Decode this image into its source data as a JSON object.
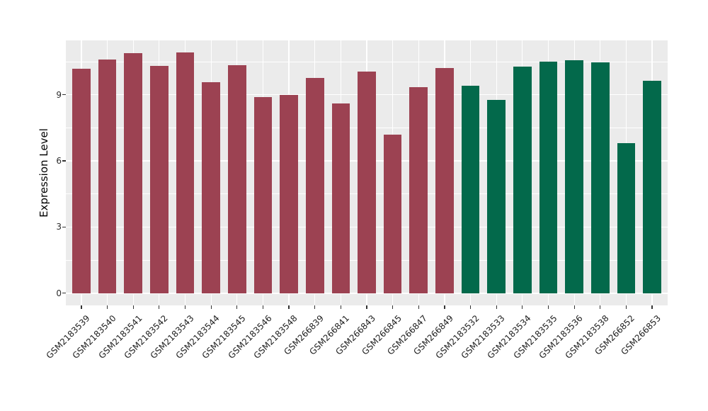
{
  "chart_data": {
    "type": "bar",
    "title": "",
    "xlabel": "",
    "ylabel": "Expression Level",
    "categories": [
      "GSM2183539",
      "GSM2183540",
      "GSM2183541",
      "GSM2183542",
      "GSM2183543",
      "GSM2183544",
      "GSM2183545",
      "GSM2183546",
      "GSM2183548",
      "GSM266839",
      "GSM266841",
      "GSM266843",
      "GSM266845",
      "GSM266847",
      "GSM266849",
      "GSM2183532",
      "GSM2183533",
      "GSM2183534",
      "GSM2183535",
      "GSM2183536",
      "GSM2183538",
      "GSM266852",
      "GSM266853"
    ],
    "values": [
      10.17,
      10.6,
      10.88,
      10.3,
      10.91,
      9.57,
      10.33,
      8.88,
      8.98,
      9.77,
      8.61,
      10.04,
      7.2,
      9.33,
      10.22,
      9.4,
      8.75,
      10.27,
      10.49,
      10.56,
      10.47,
      6.81,
      9.64
    ],
    "bar_groups": [
      0,
      0,
      0,
      0,
      0,
      0,
      0,
      0,
      0,
      0,
      0,
      0,
      0,
      0,
      0,
      1,
      1,
      1,
      1,
      1,
      1,
      1,
      1
    ],
    "group_colors": [
      "#9C4252",
      "#03694B"
    ],
    "y_ticks": [
      0,
      3,
      6,
      9
    ],
    "y_minor_ticks": [
      1.5,
      4.5,
      7.5,
      10.5
    ],
    "ylim": [
      -0.55,
      11.46
    ],
    "bar_width_fraction": 0.7,
    "panel_bg": "#EBEBEB",
    "grid_color": "#FFFFFF",
    "tick_color": "#333333",
    "legend": "none",
    "grid": "on"
  }
}
